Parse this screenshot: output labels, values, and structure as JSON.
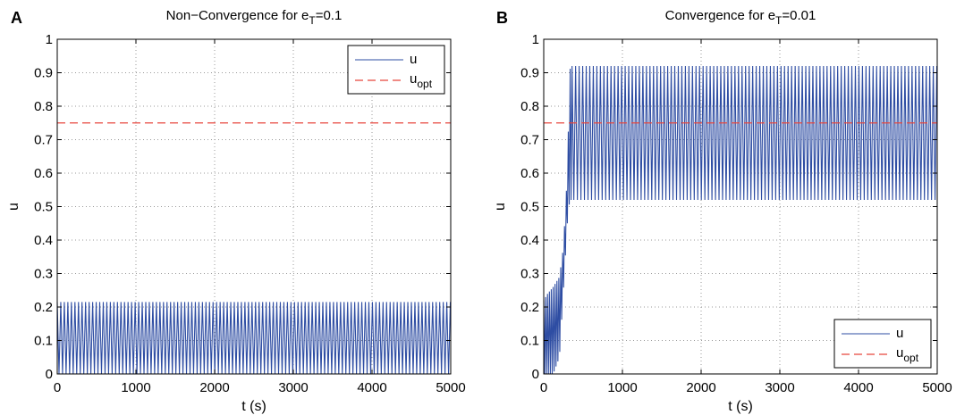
{
  "chart_data": [
    {
      "type": "line",
      "panel": "A",
      "title": {
        "main": "Non−Convergence for e",
        "sub": "T",
        "suffix": "=0.1"
      },
      "xlabel": "t (s)",
      "ylabel": "u",
      "xlim": [
        0,
        5000
      ],
      "ylim": [
        0,
        1
      ],
      "xticks": [
        "0",
        "1000",
        "2000",
        "3000",
        "4000",
        "5000"
      ],
      "yticks": [
        "0",
        "0.1",
        "0.2",
        "0.3",
        "0.4",
        "0.5",
        "0.6",
        "0.7",
        "0.8",
        "0.9",
        "1"
      ],
      "grid": true,
      "legend_position": "top-right",
      "legend": [
        {
          "name": "u",
          "sub": ""
        },
        {
          "name": "u",
          "sub": "opt"
        }
      ],
      "series": [
        {
          "name": "u",
          "style": "solid",
          "color": "#2e4da3",
          "oscillation": {
            "t_start": 0,
            "t_end": 5000,
            "low": 0.0,
            "high": 0.215,
            "period": 45
          }
        },
        {
          "name": "u_opt",
          "style": "dashed",
          "color": "#e8463c",
          "x": [
            0,
            5000
          ],
          "y": [
            0.75,
            0.75
          ]
        }
      ]
    },
    {
      "type": "line",
      "panel": "B",
      "title": {
        "main": "Convergence for e",
        "sub": "T",
        "suffix": "=0.01"
      },
      "xlabel": "t (s)",
      "ylabel": "u",
      "xlim": [
        0,
        5000
      ],
      "ylim": [
        0,
        1
      ],
      "xticks": [
        "0",
        "1000",
        "2000",
        "3000",
        "4000",
        "5000"
      ],
      "yticks": [
        "0",
        "0.1",
        "0.2",
        "0.3",
        "0.4",
        "0.5",
        "0.6",
        "0.7",
        "0.8",
        "0.9",
        "1"
      ],
      "grid": true,
      "legend_position": "bottom-right",
      "legend": [
        {
          "name": "u",
          "sub": ""
        },
        {
          "name": "u",
          "sub": "opt"
        }
      ],
      "series": [
        {
          "name": "u",
          "style": "solid",
          "color": "#2e4da3",
          "transient": {
            "x": [
              0,
              50,
              120,
              200,
              250,
              300,
              330,
              360
            ],
            "low": [
              0,
              0,
              0,
              0.05,
              0.25,
              0.45,
              0.52,
              0.52
            ],
            "high": [
              0.22,
              0.24,
              0.26,
              0.29,
              0.38,
              0.6,
              0.91,
              0.92
            ]
          },
          "oscillation": {
            "t_start": 360,
            "t_end": 5000,
            "low": 0.52,
            "high": 0.92,
            "period": 45
          }
        },
        {
          "name": "u_opt",
          "style": "dashed",
          "color": "#e8463c",
          "x": [
            0,
            5000
          ],
          "y": [
            0.75,
            0.75
          ]
        }
      ]
    }
  ]
}
